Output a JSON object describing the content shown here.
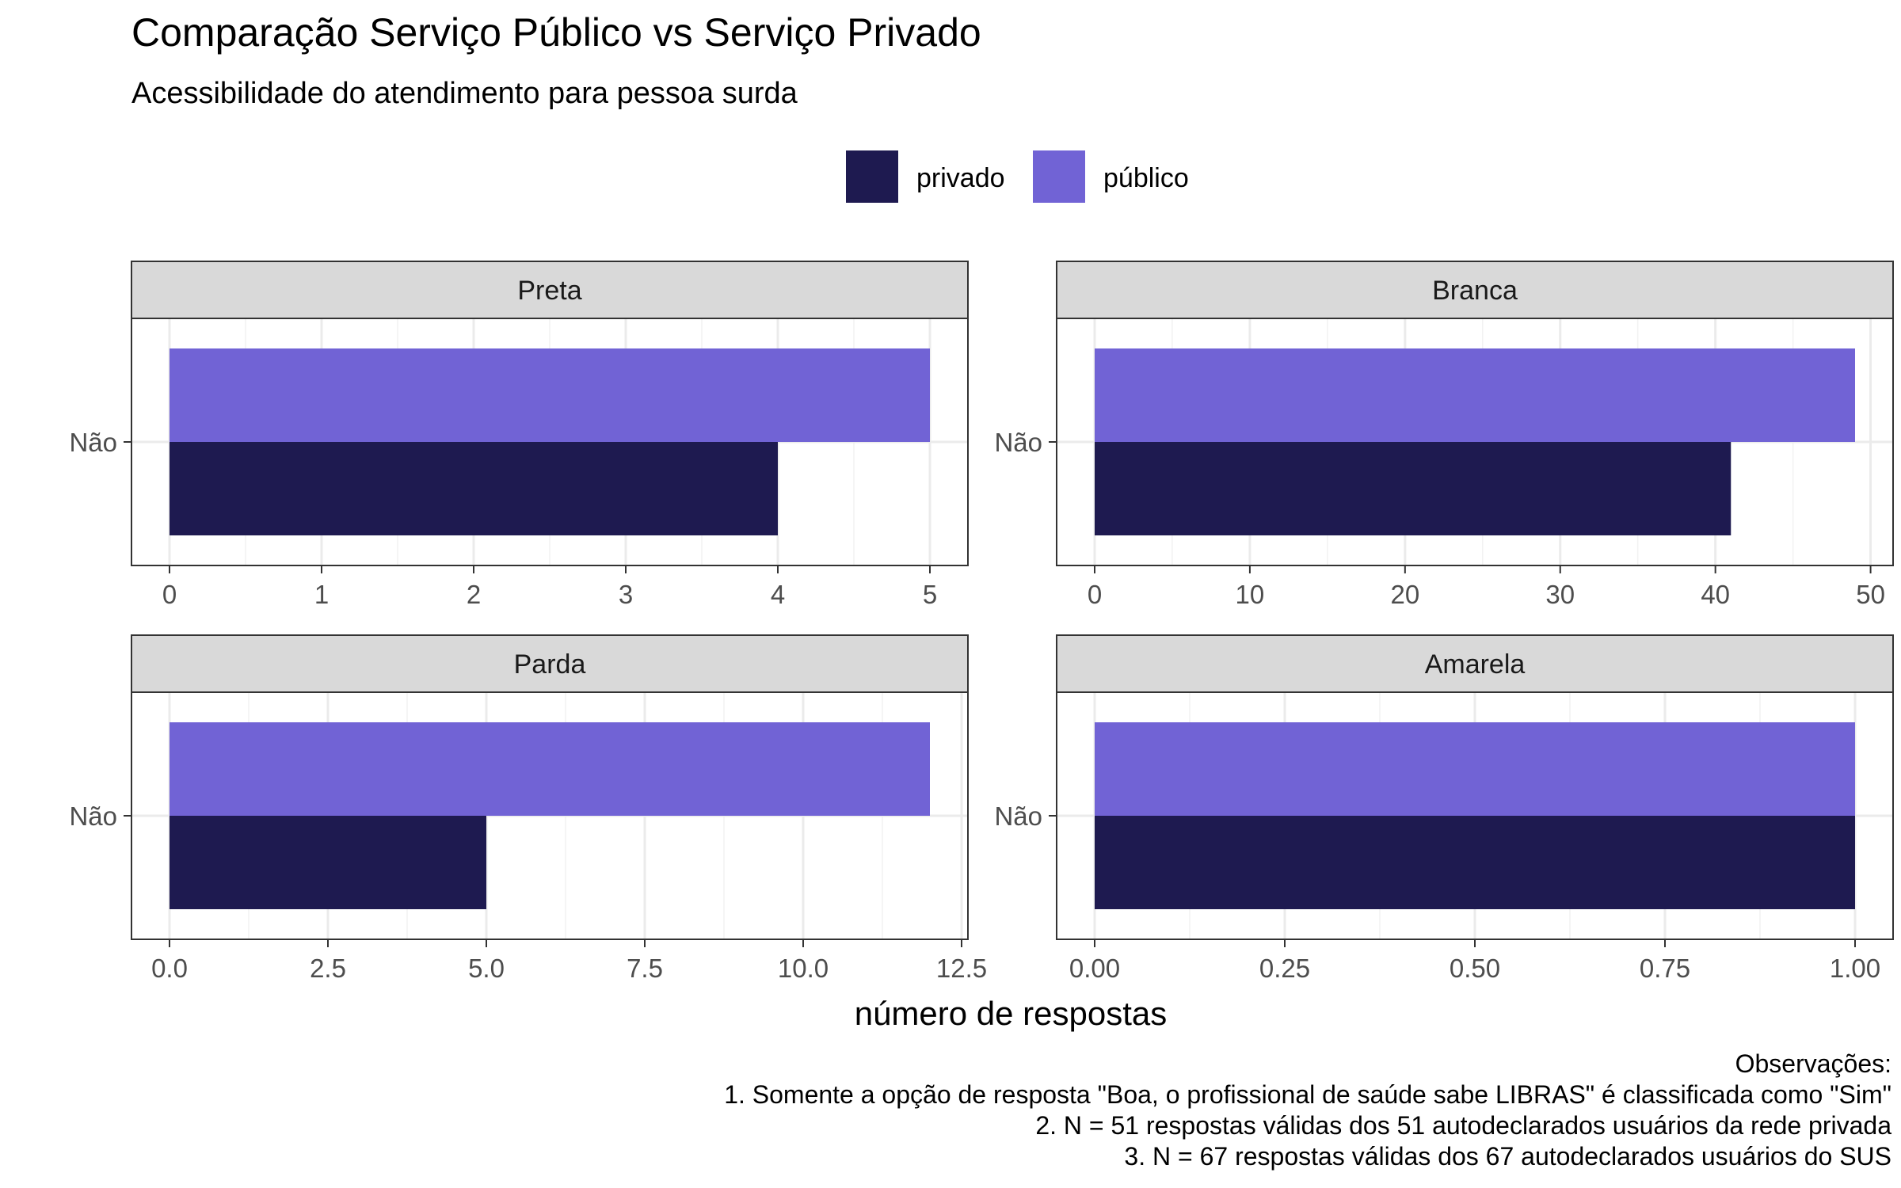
{
  "title": "Comparação Serviço Público vs Serviço Privado",
  "subtitle": "Acessibilidade do atendimento para pessoa surda",
  "xlabel": "número de respostas",
  "legend": [
    {
      "name": "privado",
      "color": "#1E1A50"
    },
    {
      "name": "público",
      "color": "#7163D5"
    }
  ],
  "caption": [
    "Observações:",
    "1. Somente a opção de resposta \"Boa, o profissional de saúde sabe LIBRAS\" é classificada como \"Sim\"",
    "2. N = 51 respostas válidas dos 51 autodeclarados usuários da rede privada",
    "3. N = 67 respostas válidas dos 67 autodeclarados usuários do SUS"
  ],
  "chart_data": [
    {
      "type": "bar",
      "orientation": "horizontal",
      "title": "Preta",
      "categories": [
        "Não"
      ],
      "series": [
        {
          "name": "privado",
          "values": [
            4
          ]
        },
        {
          "name": "público",
          "values": [
            5
          ]
        }
      ],
      "xlim": [
        0,
        5
      ],
      "xticks": [
        0,
        1,
        2,
        3,
        4,
        5
      ],
      "xtick_labels": [
        "0",
        "1",
        "2",
        "3",
        "4",
        "5"
      ]
    },
    {
      "type": "bar",
      "orientation": "horizontal",
      "title": "Branca",
      "categories": [
        "Não"
      ],
      "series": [
        {
          "name": "privado",
          "values": [
            41
          ]
        },
        {
          "name": "público",
          "values": [
            49
          ]
        }
      ],
      "xlim": [
        0,
        49
      ],
      "xticks": [
        0,
        10,
        20,
        30,
        40,
        50
      ],
      "xtick_labels": [
        "0",
        "10",
        "20",
        "30",
        "40",
        "50"
      ]
    },
    {
      "type": "bar",
      "orientation": "horizontal",
      "title": "Parda",
      "categories": [
        "Não"
      ],
      "series": [
        {
          "name": "privado",
          "values": [
            5
          ]
        },
        {
          "name": "público",
          "values": [
            12
          ]
        }
      ],
      "xlim": [
        0,
        12
      ],
      "xticks": [
        0,
        2.5,
        5,
        7.5,
        10,
        12.5
      ],
      "xtick_labels": [
        "0.0",
        "2.5",
        "5.0",
        "7.5",
        "10.0",
        "12.5"
      ]
    },
    {
      "type": "bar",
      "orientation": "horizontal",
      "title": "Amarela",
      "categories": [
        "Não"
      ],
      "series": [
        {
          "name": "privado",
          "values": [
            1
          ]
        },
        {
          "name": "público",
          "values": [
            1
          ]
        }
      ],
      "xlim": [
        0,
        1
      ],
      "xticks": [
        0,
        0.25,
        0.5,
        0.75,
        1
      ],
      "xtick_labels": [
        "0.00",
        "0.25",
        "0.50",
        "0.75",
        "1.00"
      ]
    }
  ]
}
